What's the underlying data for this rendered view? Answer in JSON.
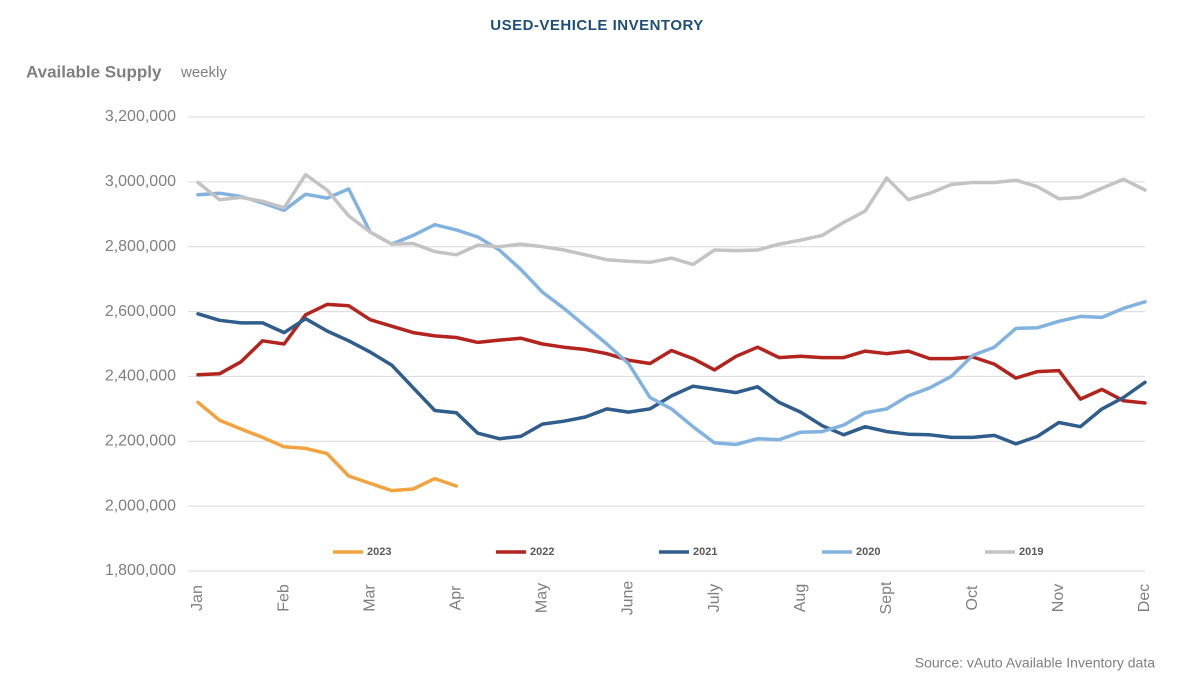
{
  "chart_data": {
    "type": "line",
    "title": "USED-VEHICLE INVENTORY",
    "ylabel": "Available Supply",
    "ylabel_note": "weekly",
    "source": "Source: vAuto Available Inventory data",
    "categories": [
      "Jan",
      null,
      null,
      null,
      "Feb",
      null,
      null,
      null,
      "Mar",
      null,
      null,
      null,
      "Apr",
      null,
      null,
      null,
      "May",
      null,
      null,
      null,
      "June",
      null,
      null,
      null,
      "July",
      null,
      null,
      null,
      "Aug",
      null,
      null,
      null,
      "Sept",
      null,
      null,
      null,
      "Oct",
      null,
      null,
      null,
      "Nov",
      null,
      null,
      null,
      "Dec"
    ],
    "series": [
      {
        "name": "2023",
        "color": "#f0a33f",
        "values": [
          2320000,
          2265000,
          2238000,
          2212000,
          2183000,
          2178000,
          2162000,
          2093000,
          2070000,
          2048000,
          2053000,
          2085000,
          2062000,
          null,
          null,
          null,
          null,
          null,
          null,
          null,
          null,
          null,
          null,
          null,
          null,
          null,
          null,
          null,
          null,
          null,
          null,
          null,
          null,
          null,
          null,
          null,
          null,
          null,
          null,
          null,
          null,
          null,
          null,
          null,
          null
        ]
      },
      {
        "name": "2022",
        "color": "#b3241f",
        "values": [
          2405000,
          2408000,
          2445000,
          2510000,
          2500000,
          2590000,
          2622000,
          2618000,
          2575000,
          2555000,
          2535000,
          2525000,
          2520000,
          2505000,
          2512000,
          2518000,
          2500000,
          2490000,
          2483000,
          2470000,
          2450000,
          2440000,
          2480000,
          2455000,
          2420000,
          2462000,
          2490000,
          2458000,
          2462000,
          2458000,
          2458000,
          2478000,
          2470000,
          2478000,
          2455000,
          2455000,
          2460000,
          2438000,
          2395000,
          2415000,
          2418000,
          2330000,
          2360000,
          2325000,
          2318000
        ]
      },
      {
        "name": "2021",
        "color": "#2f5d8c",
        "values": [
          2593000,
          2573000,
          2565000,
          2565000,
          2535000,
          2578000,
          2540000,
          2510000,
          2475000,
          2435000,
          2365000,
          2295000,
          2288000,
          2225000,
          2208000,
          2215000,
          2253000,
          2262000,
          2275000,
          2300000,
          2290000,
          2300000,
          2340000,
          2370000,
          2360000,
          2350000,
          2368000,
          2320000,
          2290000,
          2248000,
          2220000,
          2245000,
          2230000,
          2222000,
          2220000,
          2212000,
          2212000,
          2218000,
          2192000,
          2215000,
          2258000,
          2245000,
          2300000,
          2335000,
          2382000
        ]
      },
      {
        "name": "2020",
        "color": "#82b3df",
        "values": [
          2960000,
          2965000,
          2955000,
          2935000,
          2912000,
          2962000,
          2950000,
          2978000,
          2845000,
          2808000,
          2835000,
          2868000,
          2852000,
          2830000,
          2790000,
          2730000,
          2660000,
          2610000,
          2555000,
          2500000,
          2440000,
          2335000,
          2300000,
          2245000,
          2195000,
          2190000,
          2208000,
          2205000,
          2228000,
          2230000,
          2250000,
          2288000,
          2300000,
          2340000,
          2365000,
          2400000,
          2465000,
          2490000,
          2548000,
          2550000,
          2570000,
          2585000,
          2582000,
          2610000,
          2630000
        ]
      },
      {
        "name": "2019",
        "color": "#c3c3c3",
        "values": [
          2998000,
          2945000,
          2952000,
          2940000,
          2920000,
          3022000,
          2975000,
          2895000,
          2845000,
          2808000,
          2810000,
          2785000,
          2775000,
          2805000,
          2800000,
          2808000,
          2800000,
          2790000,
          2775000,
          2760000,
          2755000,
          2752000,
          2765000,
          2745000,
          2790000,
          2788000,
          2790000,
          2808000,
          2820000,
          2835000,
          2875000,
          2910000,
          3012000,
          2945000,
          2965000,
          2992000,
          2998000,
          2998000,
          3005000,
          2985000,
          2948000,
          2952000,
          2980000,
          3008000,
          2975000
        ]
      }
    ],
    "ylim": [
      1800000,
      3200000
    ],
    "yticks": [
      {
        "value": 1800000,
        "label": "1,800,000"
      },
      {
        "value": 2000000,
        "label": "2,000,000"
      },
      {
        "value": 2200000,
        "label": "2,200,000"
      },
      {
        "value": 2400000,
        "label": "2,400,000"
      },
      {
        "value": 2600000,
        "label": "2,600,000"
      },
      {
        "value": 2800000,
        "label": "2,800,000"
      },
      {
        "value": 3000000,
        "label": "3,000,000"
      },
      {
        "value": 3200000,
        "label": "3,200,000"
      }
    ],
    "grid": true,
    "legend": "bottom"
  }
}
